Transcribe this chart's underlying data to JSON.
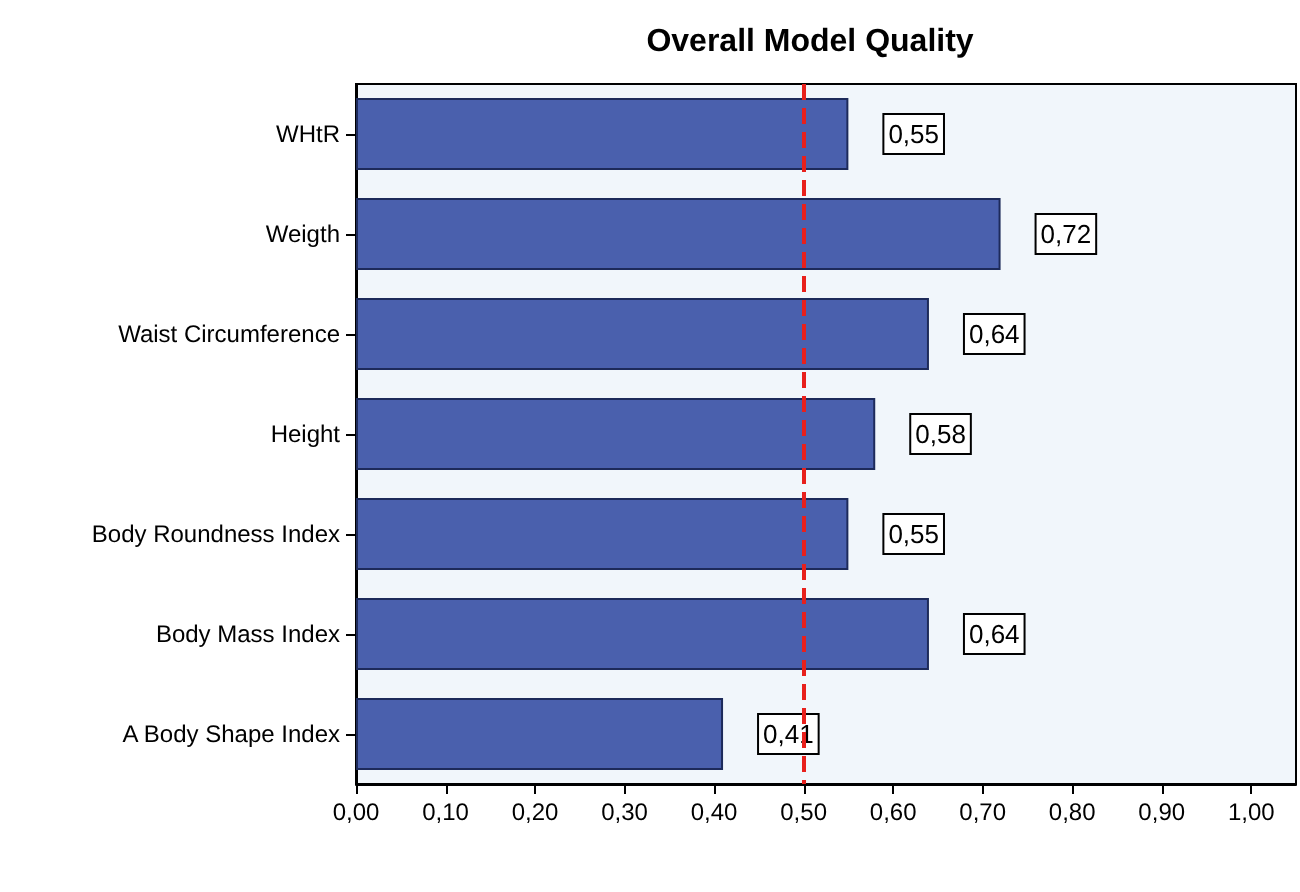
{
  "chart_data": {
    "type": "bar",
    "orientation": "horizontal",
    "title": "Overall Model Quality",
    "categories": [
      "WHtR",
      "Weigth",
      "Waist Circumference",
      "Height",
      "Body Roundness Index",
      "Body Mass Index",
      "A Body Shape Index"
    ],
    "values": [
      0.55,
      0.72,
      0.64,
      0.58,
      0.55,
      0.64,
      0.41
    ],
    "value_labels": [
      "0,55",
      "0,72",
      "0,64",
      "0,58",
      "0,55",
      "0,64",
      "0,41"
    ],
    "color": "#4a60ad",
    "xlim": [
      0,
      1.05
    ],
    "xticks": [
      {
        "value": 0,
        "label": "0,00"
      },
      {
        "value": 0.1,
        "label": "0,10"
      },
      {
        "value": 0.2,
        "label": "0,20"
      },
      {
        "value": 0.3,
        "label": "0,30"
      },
      {
        "value": 0.4,
        "label": "0,40"
      },
      {
        "value": 0.5,
        "label": "0,50"
      },
      {
        "value": 0.6,
        "label": "0,60"
      },
      {
        "value": 0.7,
        "label": "0,70"
      },
      {
        "value": 0.8,
        "label": "0,80"
      },
      {
        "value": 0.9,
        "label": "0,90"
      },
      {
        "value": 1,
        "label": "1,00"
      }
    ],
    "ref_lines": [
      {
        "axis": "x",
        "value": 0.5,
        "color": "#e8201c",
        "line_style": "dashed"
      }
    ],
    "grid": false
  }
}
